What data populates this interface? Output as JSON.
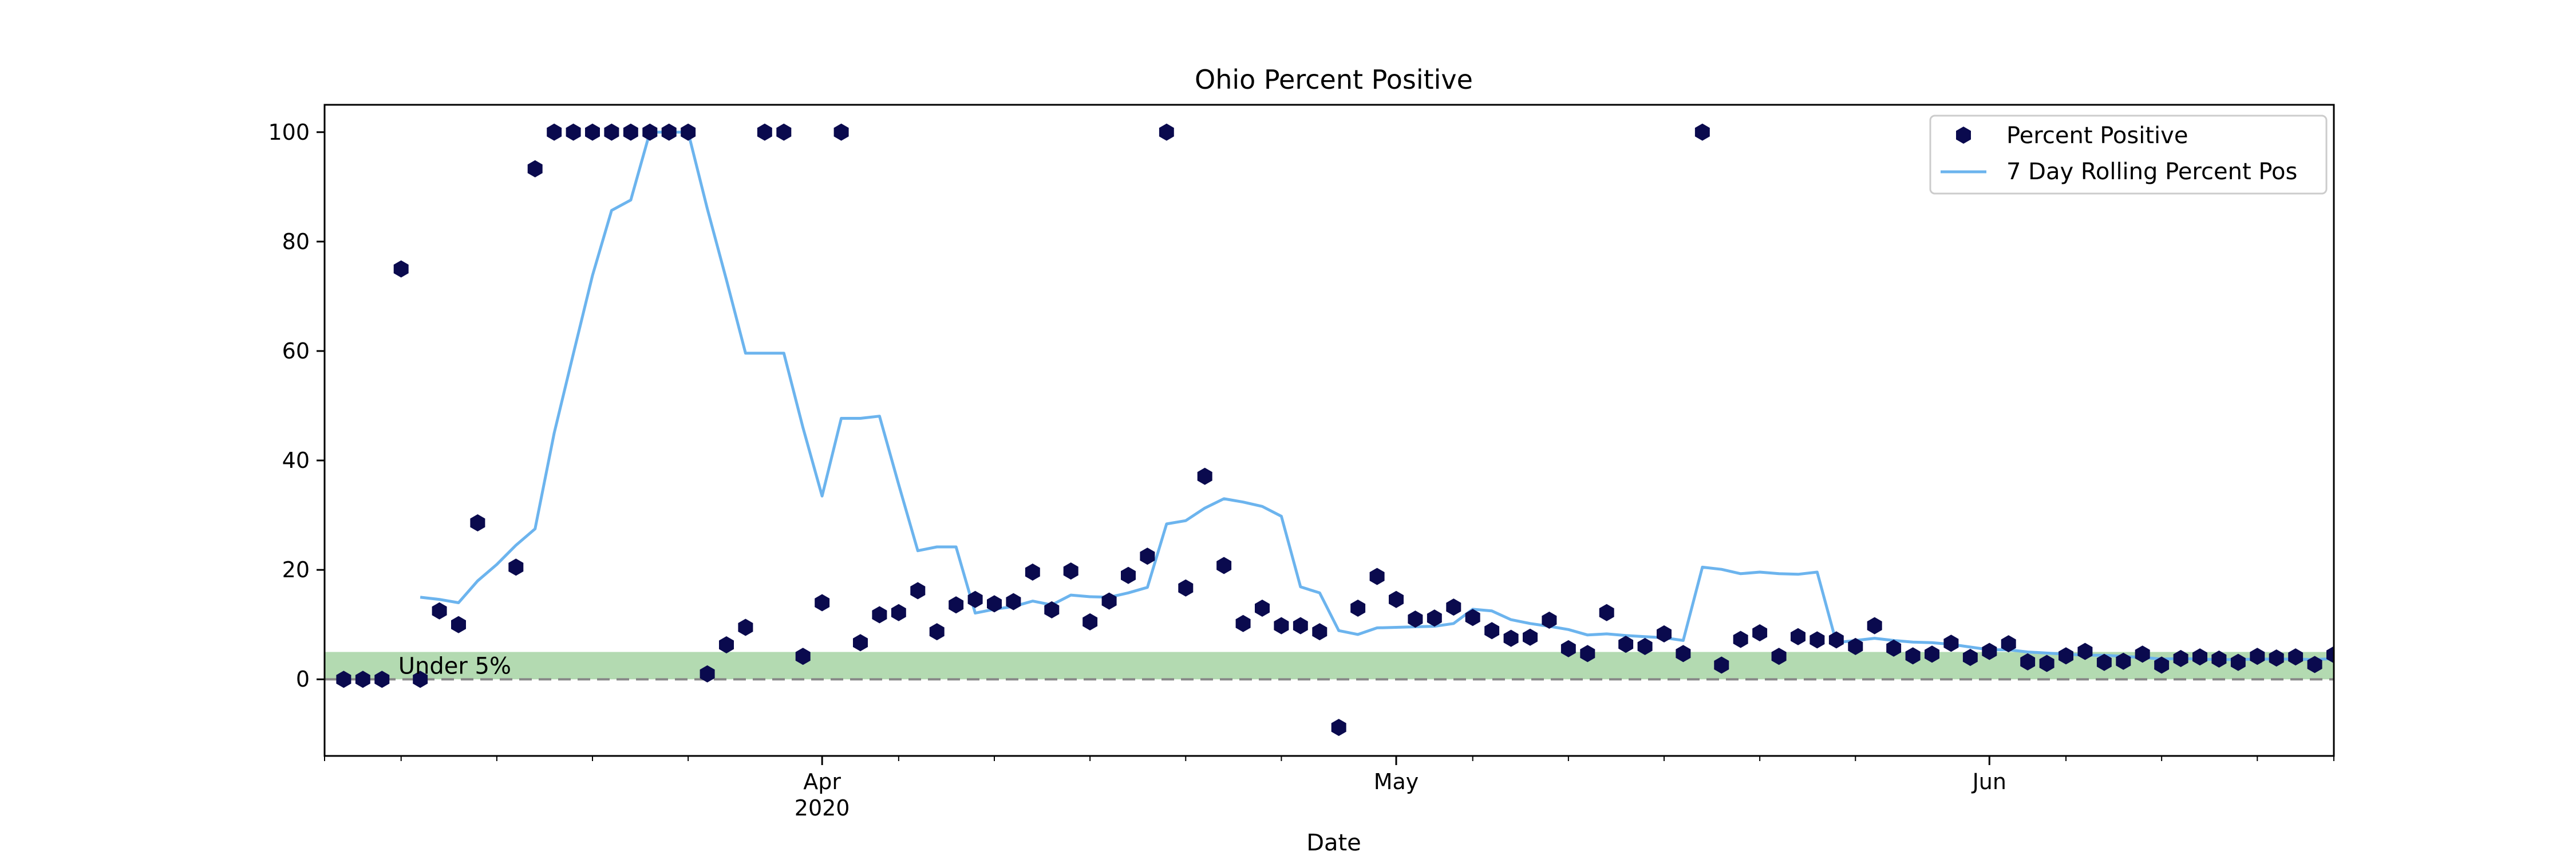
{
  "chart_data": {
    "type": "scatter",
    "title": "Ohio Percent Positive",
    "xlabel": "Date",
    "ylabel": "",
    "x_axis": {
      "type": "date",
      "range": [
        "2020-03-06",
        "2020-06-19"
      ],
      "major_ticks": [
        {
          "date": "2020-04-01",
          "label": "Apr",
          "sublabel": "2020"
        },
        {
          "date": "2020-05-01",
          "label": "May",
          "sublabel": ""
        },
        {
          "date": "2020-06-01",
          "label": "Jun",
          "sublabel": ""
        }
      ],
      "minor_ticks": [
        "2020-03-06",
        "2020-03-10",
        "2020-03-15",
        "2020-03-20",
        "2020-03-25",
        "2020-04-05",
        "2020-04-10",
        "2020-04-15",
        "2020-04-20",
        "2020-04-25",
        "2020-05-05",
        "2020-05-10",
        "2020-05-15",
        "2020-05-20",
        "2020-05-25",
        "2020-06-05",
        "2020-06-10",
        "2020-06-15",
        "2020-06-19"
      ]
    },
    "y_axis": {
      "range": [
        -14,
        105
      ],
      "ticks": [
        0,
        20,
        40,
        60,
        80,
        100
      ],
      "tick_labels": [
        "0",
        "20",
        "40",
        "60",
        "80",
        "100"
      ]
    },
    "legend": {
      "placement": "top-right"
    },
    "annotations": [
      {
        "text": "Under 5%",
        "date": "2020-03-10",
        "y": 1
      }
    ],
    "band": {
      "y0": 0,
      "y1": 5,
      "color": "#b3dab1"
    },
    "reference_line": {
      "y": 0,
      "color": "#888888",
      "style": "dashed"
    },
    "series": [
      {
        "name": "Percent Positive",
        "kind": "scatter",
        "color": "#0a0a4e",
        "marker": "hexagon",
        "points": [
          [
            "2020-03-07",
            0
          ],
          [
            "2020-03-08",
            0
          ],
          [
            "2020-03-09",
            0
          ],
          [
            "2020-03-10",
            75
          ],
          [
            "2020-03-11",
            0
          ],
          [
            "2020-03-12",
            12.5
          ],
          [
            "2020-03-13",
            10
          ],
          [
            "2020-03-14",
            28.6
          ],
          [
            "2020-03-16",
            20.5
          ],
          [
            "2020-03-17",
            93.3
          ],
          [
            "2020-03-18",
            100
          ],
          [
            "2020-03-19",
            100
          ],
          [
            "2020-03-20",
            100
          ],
          [
            "2020-03-21",
            100
          ],
          [
            "2020-03-22",
            100
          ],
          [
            "2020-03-23",
            100
          ],
          [
            "2020-03-24",
            100
          ],
          [
            "2020-03-25",
            100
          ],
          [
            "2020-03-26",
            1
          ],
          [
            "2020-03-27",
            6.3
          ],
          [
            "2020-03-28",
            9.5
          ],
          [
            "2020-03-29",
            100
          ],
          [
            "2020-03-30",
            100
          ],
          [
            "2020-03-31",
            4.2
          ],
          [
            "2020-04-01",
            14
          ],
          [
            "2020-04-02",
            100
          ],
          [
            "2020-04-03",
            6.7
          ],
          [
            "2020-04-04",
            11.8
          ],
          [
            "2020-04-05",
            12.2
          ],
          [
            "2020-04-06",
            16.2
          ],
          [
            "2020-04-07",
            8.7
          ],
          [
            "2020-04-08",
            13.6
          ],
          [
            "2020-04-09",
            14.6
          ],
          [
            "2020-04-10",
            13.8
          ],
          [
            "2020-04-11",
            14.2
          ],
          [
            "2020-04-12",
            19.6
          ],
          [
            "2020-04-13",
            12.7
          ],
          [
            "2020-04-14",
            19.8
          ],
          [
            "2020-04-15",
            10.5
          ],
          [
            "2020-04-16",
            14.3
          ],
          [
            "2020-04-17",
            19.0
          ],
          [
            "2020-04-18",
            22.5
          ],
          [
            "2020-04-19",
            100
          ],
          [
            "2020-04-20",
            16.7
          ],
          [
            "2020-04-21",
            37.1
          ],
          [
            "2020-04-22",
            20.8
          ],
          [
            "2020-04-23",
            10.2
          ],
          [
            "2020-04-24",
            13.0
          ],
          [
            "2020-04-25",
            9.8
          ],
          [
            "2020-04-26",
            9.8
          ],
          [
            "2020-04-27",
            8.7
          ],
          [
            "2020-04-28",
            -8.8
          ],
          [
            "2020-04-29",
            13.0
          ],
          [
            "2020-04-30",
            18.8
          ],
          [
            "2020-05-01",
            14.6
          ],
          [
            "2020-05-02",
            11.0
          ],
          [
            "2020-05-03",
            11.2
          ],
          [
            "2020-05-04",
            13.2
          ],
          [
            "2020-05-05",
            11.3
          ],
          [
            "2020-05-06",
            8.9
          ],
          [
            "2020-05-07",
            7.5
          ],
          [
            "2020-05-08",
            7.7
          ],
          [
            "2020-05-09",
            10.8
          ],
          [
            "2020-05-10",
            5.6
          ],
          [
            "2020-05-11",
            4.7
          ],
          [
            "2020-05-12",
            12.2
          ],
          [
            "2020-05-13",
            6.4
          ],
          [
            "2020-05-14",
            6.0
          ],
          [
            "2020-05-15",
            8.3
          ],
          [
            "2020-05-16",
            4.7
          ],
          [
            "2020-05-17",
            100
          ],
          [
            "2020-05-18",
            2.6
          ],
          [
            "2020-05-19",
            7.3
          ],
          [
            "2020-05-20",
            8.5
          ],
          [
            "2020-05-21",
            4.2
          ],
          [
            "2020-05-22",
            7.8
          ],
          [
            "2020-05-23",
            7.2
          ],
          [
            "2020-05-24",
            7.2
          ],
          [
            "2020-05-25",
            6.0
          ],
          [
            "2020-05-26",
            9.8
          ],
          [
            "2020-05-27",
            5.7
          ],
          [
            "2020-05-28",
            4.3
          ],
          [
            "2020-05-29",
            4.6
          ],
          [
            "2020-05-30",
            6.6
          ],
          [
            "2020-05-31",
            4.0
          ],
          [
            "2020-06-01",
            5.1
          ],
          [
            "2020-06-02",
            6.5
          ],
          [
            "2020-06-03",
            3.2
          ],
          [
            "2020-06-04",
            2.9
          ],
          [
            "2020-06-05",
            4.3
          ],
          [
            "2020-06-06",
            5.1
          ],
          [
            "2020-06-07",
            3.1
          ],
          [
            "2020-06-08",
            3.3
          ],
          [
            "2020-06-09",
            4.6
          ],
          [
            "2020-06-10",
            2.6
          ],
          [
            "2020-06-11",
            3.8
          ],
          [
            "2020-06-12",
            4.1
          ],
          [
            "2020-06-13",
            3.7
          ],
          [
            "2020-06-14",
            3.1
          ],
          [
            "2020-06-15",
            4.2
          ],
          [
            "2020-06-16",
            3.9
          ],
          [
            "2020-06-17",
            4.1
          ],
          [
            "2020-06-18",
            2.7
          ],
          [
            "2020-06-19",
            4.5
          ]
        ]
      },
      {
        "name": "7 Day Rolling Percent Pos",
        "kind": "line",
        "color": "#6cb4ee",
        "points": [
          [
            "2020-03-11",
            15
          ],
          [
            "2020-03-12",
            14.6
          ],
          [
            "2020-03-13",
            14.0
          ],
          [
            "2020-03-14",
            18.0
          ],
          [
            "2020-03-15",
            21.0
          ],
          [
            "2020-03-16",
            24.5
          ],
          [
            "2020-03-17",
            27.5
          ],
          [
            "2020-03-18",
            45
          ],
          [
            "2020-03-19",
            59.5
          ],
          [
            "2020-03-20",
            73.8
          ],
          [
            "2020-03-21",
            85.7
          ],
          [
            "2020-03-22",
            87.6
          ],
          [
            "2020-03-23",
            100
          ],
          [
            "2020-03-24",
            100
          ],
          [
            "2020-03-25",
            100
          ],
          [
            "2020-03-26",
            86.0
          ],
          [
            "2020-03-27",
            73.0
          ],
          [
            "2020-03-28",
            59.6
          ],
          [
            "2020-03-29",
            59.6
          ],
          [
            "2020-03-30",
            59.6
          ],
          [
            "2020-03-31",
            46.0
          ],
          [
            "2020-04-01",
            33.5
          ],
          [
            "2020-04-02",
            47.7
          ],
          [
            "2020-04-03",
            47.7
          ],
          [
            "2020-04-04",
            48.1
          ],
          [
            "2020-04-05",
            35.6
          ],
          [
            "2020-04-06",
            23.5
          ],
          [
            "2020-04-07",
            24.2
          ],
          [
            "2020-04-08",
            24.2
          ],
          [
            "2020-04-09",
            12.1
          ],
          [
            "2020-04-10",
            12.8
          ],
          [
            "2020-04-11",
            13.3
          ],
          [
            "2020-04-12",
            14.3
          ],
          [
            "2020-04-13",
            13.6
          ],
          [
            "2020-04-14",
            15.4
          ],
          [
            "2020-04-15",
            15.1
          ],
          [
            "2020-04-16",
            15.0
          ],
          [
            "2020-04-17",
            15.8
          ],
          [
            "2020-04-18",
            16.8
          ],
          [
            "2020-04-19",
            28.4
          ],
          [
            "2020-04-20",
            29.0
          ],
          [
            "2020-04-21",
            31.3
          ],
          [
            "2020-04-22",
            33.0
          ],
          [
            "2020-04-23",
            32.4
          ],
          [
            "2020-04-24",
            31.6
          ],
          [
            "2020-04-25",
            29.8
          ],
          [
            "2020-04-26",
            16.9
          ],
          [
            "2020-04-27",
            15.8
          ],
          [
            "2020-04-28",
            8.9
          ],
          [
            "2020-04-29",
            8.2
          ],
          [
            "2020-04-30",
            9.4
          ],
          [
            "2020-05-01",
            9.5
          ],
          [
            "2020-05-02",
            9.6
          ],
          [
            "2020-05-03",
            9.7
          ],
          [
            "2020-05-04",
            10.2
          ],
          [
            "2020-05-05",
            12.8
          ],
          [
            "2020-05-06",
            12.5
          ],
          [
            "2020-05-07",
            10.9
          ],
          [
            "2020-05-08",
            10.2
          ],
          [
            "2020-05-09",
            9.7
          ],
          [
            "2020-05-10",
            9.1
          ],
          [
            "2020-05-11",
            8.1
          ],
          [
            "2020-05-12",
            8.3
          ],
          [
            "2020-05-13",
            8.0
          ],
          [
            "2020-05-14",
            7.8
          ],
          [
            "2020-05-15",
            7.6
          ],
          [
            "2020-05-16",
            7.1
          ],
          [
            "2020-05-17",
            20.5
          ],
          [
            "2020-05-18",
            20.1
          ],
          [
            "2020-05-19",
            19.3
          ],
          [
            "2020-05-20",
            19.6
          ],
          [
            "2020-05-21",
            19.3
          ],
          [
            "2020-05-22",
            19.2
          ],
          [
            "2020-05-23",
            19.6
          ],
          [
            "2020-05-24",
            6.7
          ],
          [
            "2020-05-25",
            7.1
          ],
          [
            "2020-05-26",
            7.5
          ],
          [
            "2020-05-27",
            7.1
          ],
          [
            "2020-05-28",
            6.8
          ],
          [
            "2020-05-29",
            6.7
          ],
          [
            "2020-05-30",
            6.4
          ],
          [
            "2020-05-31",
            5.9
          ],
          [
            "2020-06-01",
            5.4
          ],
          [
            "2020-06-02",
            5.4
          ],
          [
            "2020-06-03",
            5.0
          ],
          [
            "2020-06-04",
            4.8
          ],
          [
            "2020-06-05",
            4.6
          ],
          [
            "2020-06-06",
            4.4
          ],
          [
            "2020-06-07",
            4.4
          ],
          [
            "2020-06-08",
            4.2
          ],
          [
            "2020-06-09",
            4.0
          ],
          [
            "2020-06-10",
            3.7
          ],
          [
            "2020-06-11",
            3.8
          ],
          [
            "2020-06-12",
            3.7
          ],
          [
            "2020-06-13",
            3.6
          ],
          [
            "2020-06-14",
            3.6
          ],
          [
            "2020-06-15",
            3.7
          ],
          [
            "2020-06-16",
            3.7
          ],
          [
            "2020-06-17",
            3.7
          ],
          [
            "2020-06-18",
            3.6
          ],
          [
            "2020-06-19",
            3.8
          ]
        ]
      }
    ]
  }
}
